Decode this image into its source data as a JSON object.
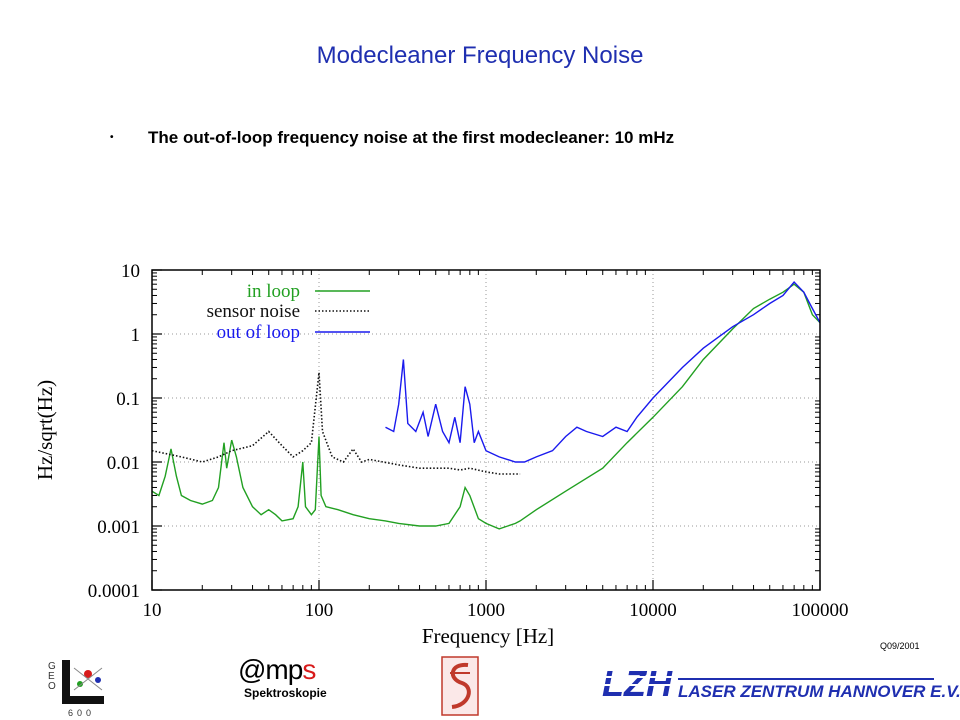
{
  "slide": {
    "title": "Modecleaner Frequency Noise",
    "bullet": "The out-of-loop frequency noise at the first modecleaner: 10 mHz",
    "slide_id": "Q09/2001"
  },
  "logos": {
    "mps_brand": "@mps",
    "mps_sub": "Spektroskopie",
    "lzh_name": "LASER ZENTRUM HANNOVER E.V.",
    "lzh_mark": "LZH",
    "geo_letters": "GEO",
    "geo_digits": "600"
  },
  "chart_data": {
    "type": "line",
    "xlabel": "Frequency [Hz]",
    "ylabel": "Hz/sqrt(Hz)",
    "xscale": "log",
    "yscale": "log",
    "xlim": [
      10,
      100000
    ],
    "ylim": [
      0.0001,
      10
    ],
    "x_ticks": [
      10,
      100,
      1000,
      10000,
      100000
    ],
    "x_tick_labels": [
      "10",
      "100",
      "1000",
      "10000",
      "100000"
    ],
    "y_ticks": [
      10,
      1,
      0.1,
      0.01,
      0.001,
      0.0001
    ],
    "y_tick_labels": [
      "10",
      "1",
      "0.1",
      "0.01",
      "0.001",
      "0.0001"
    ],
    "grid": true,
    "legend_position": "top-left",
    "series": [
      {
        "name": "in loop",
        "color": "#22a022",
        "style": "solid",
        "points": [
          [
            10,
            0.0035
          ],
          [
            11,
            0.003
          ],
          [
            12,
            0.006
          ],
          [
            13,
            0.016
          ],
          [
            14,
            0.006
          ],
          [
            15,
            0.003
          ],
          [
            17,
            0.0025
          ],
          [
            20,
            0.0022
          ],
          [
            23,
            0.0025
          ],
          [
            25,
            0.004
          ],
          [
            27,
            0.02
          ],
          [
            28,
            0.008
          ],
          [
            30,
            0.022
          ],
          [
            32,
            0.012
          ],
          [
            35,
            0.004
          ],
          [
            40,
            0.002
          ],
          [
            45,
            0.0015
          ],
          [
            50,
            0.0018
          ],
          [
            55,
            0.0015
          ],
          [
            60,
            0.0012
          ],
          [
            70,
            0.0013
          ],
          [
            75,
            0.002
          ],
          [
            80,
            0.01
          ],
          [
            83,
            0.002
          ],
          [
            90,
            0.0015
          ],
          [
            95,
            0.0018
          ],
          [
            100,
            0.025
          ],
          [
            103,
            0.003
          ],
          [
            110,
            0.002
          ],
          [
            130,
            0.0018
          ],
          [
            160,
            0.0015
          ],
          [
            200,
            0.0013
          ],
          [
            250,
            0.0012
          ],
          [
            300,
            0.0011
          ],
          [
            400,
            0.001
          ],
          [
            500,
            0.001
          ],
          [
            600,
            0.0011
          ],
          [
            700,
            0.002
          ],
          [
            750,
            0.004
          ],
          [
            800,
            0.003
          ],
          [
            900,
            0.0013
          ],
          [
            1000,
            0.0011
          ],
          [
            1200,
            0.0009
          ],
          [
            1500,
            0.0011
          ],
          [
            1600,
            0.0012
          ],
          [
            2000,
            0.0018
          ],
          [
            3000,
            0.0035
          ],
          [
            5000,
            0.008
          ],
          [
            7000,
            0.02
          ],
          [
            10000,
            0.05
          ],
          [
            15000,
            0.15
          ],
          [
            20000,
            0.4
          ],
          [
            30000,
            1.2
          ],
          [
            40000,
            2.5
          ],
          [
            50000,
            3.5
          ],
          [
            60000,
            4.5
          ],
          [
            70000,
            6
          ],
          [
            80000,
            4.5
          ],
          [
            90000,
            2
          ],
          [
            100000,
            1.5
          ]
        ]
      },
      {
        "name": "sensor noise",
        "color": "#111111",
        "style": "dotted",
        "points": [
          [
            10,
            0.015
          ],
          [
            15,
            0.012
          ],
          [
            20,
            0.01
          ],
          [
            25,
            0.012
          ],
          [
            30,
            0.015
          ],
          [
            40,
            0.018
          ],
          [
            50,
            0.03
          ],
          [
            60,
            0.018
          ],
          [
            70,
            0.012
          ],
          [
            80,
            0.015
          ],
          [
            90,
            0.02
          ],
          [
            100,
            0.25
          ],
          [
            105,
            0.03
          ],
          [
            120,
            0.012
          ],
          [
            140,
            0.01
          ],
          [
            160,
            0.016
          ],
          [
            180,
            0.01
          ],
          [
            200,
            0.011
          ],
          [
            300,
            0.009
          ],
          [
            400,
            0.008
          ],
          [
            500,
            0.008
          ],
          [
            600,
            0.008
          ],
          [
            700,
            0.0075
          ],
          [
            800,
            0.008
          ],
          [
            1000,
            0.007
          ],
          [
            1200,
            0.0065
          ],
          [
            1500,
            0.0065
          ],
          [
            1600,
            0.0065
          ]
        ]
      },
      {
        "name": "out of loop",
        "color": "#1a1aee",
        "style": "solid",
        "points": [
          [
            250,
            0.035
          ],
          [
            280,
            0.03
          ],
          [
            300,
            0.08
          ],
          [
            320,
            0.4
          ],
          [
            340,
            0.04
          ],
          [
            380,
            0.03
          ],
          [
            420,
            0.06
          ],
          [
            450,
            0.025
          ],
          [
            500,
            0.08
          ],
          [
            550,
            0.03
          ],
          [
            600,
            0.02
          ],
          [
            650,
            0.05
          ],
          [
            700,
            0.02
          ],
          [
            750,
            0.15
          ],
          [
            800,
            0.08
          ],
          [
            850,
            0.02
          ],
          [
            900,
            0.03
          ],
          [
            1000,
            0.015
          ],
          [
            1200,
            0.012
          ],
          [
            1500,
            0.01
          ],
          [
            1700,
            0.01
          ],
          [
            2000,
            0.012
          ],
          [
            2500,
            0.015
          ],
          [
            3000,
            0.025
          ],
          [
            3500,
            0.035
          ],
          [
            4000,
            0.03
          ],
          [
            5000,
            0.025
          ],
          [
            6000,
            0.035
          ],
          [
            7000,
            0.03
          ],
          [
            8000,
            0.05
          ],
          [
            10000,
            0.1
          ],
          [
            15000,
            0.3
          ],
          [
            20000,
            0.6
          ],
          [
            30000,
            1.3
          ],
          [
            40000,
            2
          ],
          [
            50000,
            3
          ],
          [
            60000,
            4
          ],
          [
            70000,
            6.5
          ],
          [
            80000,
            4.5
          ],
          [
            90000,
            2.5
          ],
          [
            100000,
            1.5
          ]
        ]
      }
    ]
  }
}
